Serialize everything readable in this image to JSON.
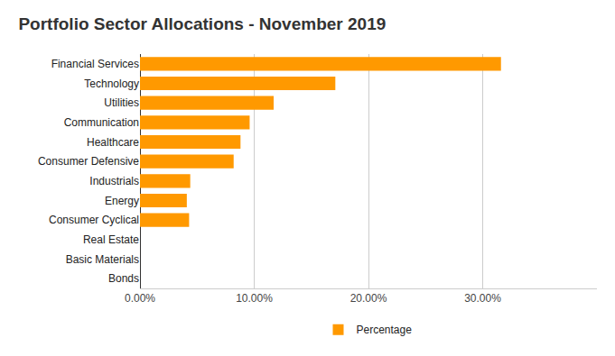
{
  "chart_data": {
    "type": "bar",
    "title": "Portfolio Sector Allocations - November 2019",
    "orientation": "horizontal",
    "categories": [
      "Financial Services",
      "Technology",
      "Utilities",
      "Communication",
      "Healthcare",
      "Consumer Defensive",
      "Industrials",
      "Energy",
      "Consumer Cyclical",
      "Real Estate",
      "Basic Materials",
      "Bonds"
    ],
    "series": [
      {
        "name": "Percentage",
        "color": "#ff9900",
        "values": [
          31.6,
          17.1,
          11.7,
          9.6,
          8.8,
          8.2,
          4.4,
          4.1,
          4.3,
          0,
          0,
          0
        ]
      }
    ],
    "xlim": [
      0,
      40
    ],
    "xticks": [
      {
        "value": 0,
        "label": "0.00%"
      },
      {
        "value": 10,
        "label": "10.00%"
      },
      {
        "value": 20,
        "label": "20.00%"
      },
      {
        "value": 30,
        "label": "30.00%"
      }
    ],
    "grid": true,
    "legend": "bottom"
  }
}
